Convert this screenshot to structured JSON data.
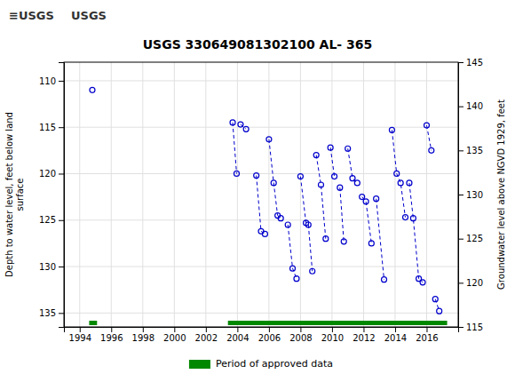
{
  "chart_data": {
    "type": "line",
    "title": "USGS 330649081302100 AL- 365",
    "annotations": [
      "≡USGS",
      "USGS"
    ],
    "ylabel": "Depth to water level, feet below land\nsurface",
    "y2label": "Groundwater level above NGVD 1929, feet",
    "xlim": [
      1993,
      2018
    ],
    "xticks": [
      1994,
      1996,
      1998,
      2000,
      2002,
      2004,
      2006,
      2008,
      2010,
      2012,
      2014,
      2016
    ],
    "ylim": [
      136.5,
      108.0
    ],
    "yticks": [
      110,
      115,
      120,
      125,
      130,
      135
    ],
    "y2lim": [
      115,
      145
    ],
    "y2ticks": [
      115,
      120,
      125,
      130,
      135,
      140,
      145
    ],
    "grid": true,
    "color": "#0000cc",
    "marker": "circle",
    "line_style": "dashed",
    "legend": "bottom",
    "series": [
      {
        "x": [
          1994.8
        ],
        "values": [
          111.0
        ]
      },
      {
        "x": [
          2003.7,
          2003.95
        ],
        "values": [
          114.5,
          120.0
        ]
      },
      {
        "x": [
          2004.2,
          2004.55
        ],
        "values": [
          114.7,
          115.2
        ]
      },
      {
        "x": [
          2005.2,
          2005.5,
          2005.75
        ],
        "values": [
          120.2,
          126.2,
          126.5
        ]
      },
      {
        "x": [
          2006.0,
          2006.3,
          2006.55,
          2006.75
        ],
        "values": [
          116.3,
          121.0,
          124.5,
          124.8
        ]
      },
      {
        "x": [
          2007.2,
          2007.5,
          2007.75
        ],
        "values": [
          125.5,
          130.2,
          131.3
        ]
      },
      {
        "x": [
          2008.0,
          2008.35
        ],
        "values": [
          120.3,
          125.3
        ]
      },
      {
        "x": [
          2008.5,
          2008.75
        ],
        "values": [
          125.5,
          130.5
        ]
      },
      {
        "x": [
          2009.0,
          2009.3,
          2009.6
        ],
        "values": [
          118.0,
          121.2,
          127.0
        ]
      },
      {
        "x": [
          2009.9,
          2010.15
        ],
        "values": [
          117.2,
          120.3
        ]
      },
      {
        "x": [
          2010.5,
          2010.75
        ],
        "values": [
          121.5,
          127.3
        ]
      },
      {
        "x": [
          2011.0,
          2011.3,
          2011.6
        ],
        "values": [
          117.3,
          120.5,
          121.0
        ]
      },
      {
        "x": [
          2011.9,
          2012.15,
          2012.5
        ],
        "values": [
          122.5,
          123.0,
          127.5
        ]
      },
      {
        "x": [
          2012.8,
          2013.3
        ],
        "values": [
          122.7,
          131.4
        ]
      },
      {
        "x": [
          2013.8,
          2014.1,
          2014.35,
          2014.65
        ],
        "values": [
          115.3,
          120.0,
          121.0,
          124.7
        ]
      },
      {
        "x": [
          2014.9,
          2015.15,
          2015.5,
          2015.75
        ],
        "values": [
          121.0,
          124.8,
          131.3,
          131.7
        ]
      },
      {
        "x": [
          2016.0,
          2016.3
        ],
        "values": [
          114.8,
          117.5
        ]
      },
      {
        "x": [
          2016.55,
          2016.8
        ],
        "values": [
          133.5,
          134.8
        ]
      }
    ],
    "approved_periods": {
      "name": "Period of approved data",
      "color": "#008800",
      "ranges": [
        [
          1994.6,
          1995.1
        ],
        [
          2003.4,
          2017.3
        ]
      ]
    }
  }
}
